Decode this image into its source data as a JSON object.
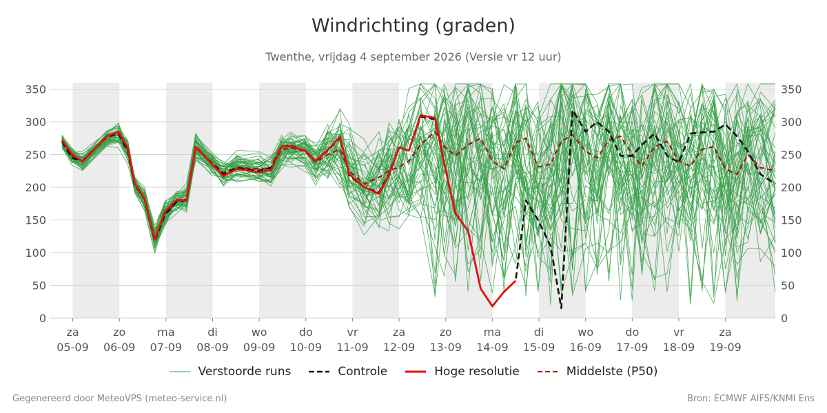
{
  "header": {
    "title": "Windrichting (graden)",
    "subtitle": "Twenthe, vrijdag  4 september 2026 (Versie vr 12 uur)"
  },
  "footer": {
    "left": "Gegenereerd door MeteoVPS (meteo-service.nl)",
    "right": "Bron: ECMWF AIFS/KNMI Ens"
  },
  "legend": [
    {
      "label": "Verstoorde runs",
      "color": "#3aa04a",
      "style": "thin"
    },
    {
      "label": "Controle",
      "color": "#111111",
      "style": "dashed"
    },
    {
      "label": "Hoge resolutie",
      "color": "#e0120f",
      "style": "solid"
    },
    {
      "label": "Middelste (P50)",
      "color": "#a81010",
      "style": "dashed"
    }
  ],
  "chart_data": {
    "type": "line",
    "title": "Windrichting (graden)",
    "xlabel": "",
    "ylabel": "",
    "ylim": [
      0,
      360
    ],
    "yticks": [
      0,
      50,
      100,
      150,
      200,
      250,
      300,
      350
    ],
    "xlim": [
      -0.23,
      15.07
    ],
    "grid": true,
    "legend_position": "bottom",
    "x_unit": "days from za 05-09 00:00",
    "day_ticks": [
      {
        "x": 0,
        "day": "za",
        "date": "05-09"
      },
      {
        "x": 1,
        "day": "zo",
        "date": "06-09"
      },
      {
        "x": 2,
        "day": "ma",
        "date": "07-09"
      },
      {
        "x": 3,
        "day": "di",
        "date": "08-09"
      },
      {
        "x": 4,
        "day": "wo",
        "date": "09-09"
      },
      {
        "x": 5,
        "day": "do",
        "date": "10-09"
      },
      {
        "x": 6,
        "day": "vr",
        "date": "11-09"
      },
      {
        "x": 7,
        "day": "za",
        "date": "12-09"
      },
      {
        "x": 8,
        "day": "zo",
        "date": "13-09"
      },
      {
        "x": 9,
        "day": "ma",
        "date": "14-09"
      },
      {
        "x": 10,
        "day": "di",
        "date": "15-09"
      },
      {
        "x": 11,
        "day": "wo",
        "date": "16-09"
      },
      {
        "x": 12,
        "day": "do",
        "date": "17-09"
      },
      {
        "x": 13,
        "day": "vr",
        "date": "18-09"
      },
      {
        "x": 14,
        "day": "za",
        "date": "19-09"
      }
    ],
    "weekend_bands": [
      [
        0,
        1
      ],
      [
        2,
        3
      ],
      [
        4,
        5
      ],
      [
        6,
        7
      ],
      [
        8,
        9
      ],
      [
        10,
        11
      ],
      [
        12,
        13
      ],
      [
        14,
        15.07
      ]
    ],
    "series": [
      {
        "name": "Hoge resolutie",
        "color": "#e0120f",
        "x": [
          -0.23,
          -0.02,
          0.21,
          0.73,
          0.98,
          1.18,
          1.33,
          1.54,
          1.76,
          1.98,
          2.23,
          2.44,
          2.64,
          2.98,
          3.23,
          3.52,
          3.98,
          4.25,
          4.48,
          4.68,
          4.98,
          5.21,
          5.47,
          5.73,
          5.93,
          6.25,
          6.57,
          6.78,
          7.0,
          7.21,
          7.46,
          7.77,
          7.97,
          8.21,
          8.48,
          8.75,
          9.0,
          9.25,
          9.5
        ],
        "y": [
          272,
          251,
          239,
          278,
          285,
          260,
          205,
          183,
          120,
          163,
          181,
          180,
          262,
          236,
          217,
          228,
          223,
          226,
          262,
          263,
          256,
          240,
          257,
          277,
          220,
          200,
          190,
          218,
          261,
          256,
          310,
          306,
          236,
          160,
          133,
          45,
          18,
          40,
          57
        ]
      },
      {
        "name": "Controle",
        "color": "#111111",
        "x": [
          -0.23,
          -0.02,
          0.21,
          0.73,
          0.98,
          1.18,
          1.33,
          1.54,
          1.76,
          1.98,
          2.23,
          2.44,
          2.64,
          2.98,
          3.23,
          3.52,
          3.98,
          4.25,
          4.48,
          4.68,
          4.98,
          5.21,
          5.47,
          5.73,
          5.93,
          6.25,
          6.57,
          6.78,
          7.0,
          7.21,
          7.46,
          7.77,
          7.97,
          8.21,
          8.48,
          8.75,
          9.0,
          9.25,
          9.5,
          9.72,
          9.98,
          10.25,
          10.48,
          10.72,
          11.0,
          11.25,
          11.5,
          11.75,
          12.0,
          12.21,
          12.48,
          12.75,
          13.0,
          13.25,
          13.5,
          13.75,
          14.0,
          14.25,
          14.48,
          14.75,
          15.07
        ],
        "y": [
          270,
          245,
          240,
          278,
          282,
          255,
          203,
          182,
          118,
          158,
          178,
          180,
          262,
          237,
          220,
          230,
          225,
          230,
          262,
          264,
          256,
          240,
          256,
          276,
          218,
          200,
          192,
          220,
          261,
          256,
          308,
          304,
          236,
          160,
          133,
          45,
          18,
          40,
          57,
          180,
          150,
          110,
          15,
          318,
          285,
          300,
          285,
          248,
          248,
          265,
          282,
          248,
          238,
          282,
          284,
          285,
          296,
          278,
          255,
          220,
          205
        ],
        "dashed": true
      },
      {
        "name": "Middelste (P50)",
        "color": "#a81010",
        "x": [
          -0.23,
          -0.02,
          0.21,
          0.73,
          0.98,
          1.18,
          1.33,
          1.54,
          1.76,
          1.98,
          2.23,
          2.44,
          2.64,
          2.98,
          3.23,
          3.52,
          3.98,
          4.25,
          4.48,
          4.68,
          4.98,
          5.21,
          5.47,
          5.73,
          5.93,
          6.25,
          6.57,
          6.78,
          7.0,
          7.21,
          7.46,
          7.77,
          7.97,
          8.21,
          8.48,
          8.75,
          9.0,
          9.25,
          9.5,
          9.72,
          9.98,
          10.25,
          10.48,
          10.72,
          11.0,
          11.25,
          11.5,
          11.75,
          12.0,
          12.21,
          12.48,
          12.75,
          13.0,
          13.25,
          13.5,
          13.75,
          14.0,
          14.25,
          14.48,
          14.75,
          15.07
        ],
        "y": [
          270,
          248,
          240,
          276,
          282,
          258,
          205,
          182,
          120,
          160,
          178,
          182,
          260,
          238,
          222,
          230,
          228,
          228,
          258,
          260,
          255,
          238,
          250,
          258,
          225,
          205,
          215,
          225,
          231,
          240,
          265,
          285,
          262,
          248,
          265,
          275,
          240,
          228,
          268,
          275,
          231,
          235,
          270,
          280,
          255,
          245,
          272,
          278,
          250,
          232,
          262,
          270,
          240,
          232,
          258,
          262,
          228,
          220,
          250,
          230,
          225
        ],
        "dashed": true
      }
    ],
    "ensemble_note": "about 50 perturbed runs shown as thin green lines"
  }
}
